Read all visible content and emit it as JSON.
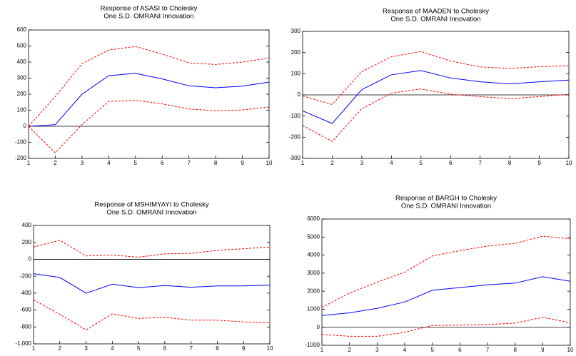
{
  "chart_data": [
    {
      "type": "line",
      "title": "Response of ASASI to Cholesky",
      "subtitle": "One S.D. OMRANI Innovation",
      "x": [
        1,
        2,
        3,
        4,
        5,
        6,
        7,
        8,
        9,
        10
      ],
      "xlim": [
        1,
        10
      ],
      "xticks": [
        1,
        2,
        3,
        4,
        5,
        6,
        7,
        8,
        9,
        10
      ],
      "ylim": [
        -200,
        600
      ],
      "yticks": [
        -200,
        -100,
        0,
        100,
        200,
        300,
        400,
        500,
        600
      ],
      "zero_line": true,
      "series": [
        {
          "color": "#0000ff",
          "dash": false,
          "values": [
            0,
            10,
            200,
            315,
            330,
            295,
            252,
            240,
            250,
            275
          ]
        },
        {
          "color": "#ff0000",
          "dash": true,
          "values": [
            0,
            185,
            390,
            475,
            497,
            450,
            395,
            385,
            400,
            425
          ]
        },
        {
          "color": "#ff0000",
          "dash": true,
          "values": [
            0,
            -165,
            10,
            155,
            162,
            140,
            108,
            97,
            102,
            120
          ]
        }
      ]
    },
    {
      "type": "line",
      "title": "Response of MAADEN to Cholesky",
      "subtitle": "One S.D. OMRANI Innovation",
      "x": [
        1,
        2,
        3,
        4,
        5,
        6,
        7,
        8,
        9,
        10
      ],
      "xlim": [
        1,
        10
      ],
      "xticks": [
        1,
        2,
        3,
        4,
        5,
        6,
        7,
        8,
        9,
        10
      ],
      "ylim": [
        -300,
        300
      ],
      "yticks": [
        -300,
        -200,
        -100,
        0,
        100,
        200,
        300
      ],
      "zero_line": true,
      "series": [
        {
          "color": "#0000ff",
          "dash": false,
          "values": [
            -75,
            -135,
            25,
            95,
            115,
            80,
            62,
            52,
            62,
            70
          ]
        },
        {
          "color": "#ff0000",
          "dash": true,
          "values": [
            -5,
            -45,
            110,
            180,
            205,
            160,
            132,
            125,
            133,
            138
          ]
        },
        {
          "color": "#ff0000",
          "dash": true,
          "values": [
            -145,
            -220,
            -65,
            8,
            28,
            3,
            -8,
            -18,
            -8,
            3
          ]
        }
      ]
    },
    {
      "type": "line",
      "title": "Response of MSHIMYAYI to Cholesky",
      "subtitle": "One S.D. OMRANI Innovation",
      "x": [
        1,
        2,
        3,
        4,
        5,
        6,
        7,
        8,
        9,
        10
      ],
      "xlim": [
        1,
        10
      ],
      "xticks": [
        1,
        2,
        3,
        4,
        5,
        6,
        7,
        8,
        9,
        10
      ],
      "ylim": [
        -1000,
        400
      ],
      "yticks": [
        {
          "value": -1000,
          "label": "-1,000"
        },
        -800,
        -600,
        -400,
        -200,
        0,
        200,
        400
      ],
      "zero_line": true,
      "series": [
        {
          "color": "#0000ff",
          "dash": false,
          "values": [
            -170,
            -215,
            -400,
            -295,
            -335,
            -310,
            -330,
            -315,
            -315,
            -305
          ]
        },
        {
          "color": "#ff0000",
          "dash": true,
          "values": [
            145,
            225,
            40,
            50,
            25,
            65,
            70,
            105,
            125,
            145
          ]
        },
        {
          "color": "#ff0000",
          "dash": true,
          "values": [
            -480,
            -650,
            -835,
            -645,
            -700,
            -685,
            -720,
            -720,
            -740,
            -750
          ]
        }
      ]
    },
    {
      "type": "line",
      "title": "Response of BARGH to Cholesky",
      "subtitle": "One S.D. OMRANI Innovation",
      "x": [
        1,
        2,
        3,
        4,
        5,
        6,
        7,
        8,
        9,
        10
      ],
      "xlim": [
        1,
        10
      ],
      "xticks": [
        1,
        2,
        3,
        4,
        5,
        6,
        7,
        8,
        9,
        10
      ],
      "ylim": [
        -1000,
        6000
      ],
      "yticks": [
        -1000,
        0,
        1000,
        2000,
        3000,
        4000,
        5000,
        6000
      ],
      "zero_line": true,
      "series": [
        {
          "color": "#0000ff",
          "dash": false,
          "values": [
            650,
            800,
            1050,
            1400,
            2050,
            2200,
            2350,
            2450,
            2800,
            2550
          ]
        },
        {
          "color": "#ff0000",
          "dash": true,
          "values": [
            1100,
            1900,
            2500,
            3050,
            3950,
            4250,
            4500,
            4650,
            5050,
            4900
          ]
        },
        {
          "color": "#ff0000",
          "dash": true,
          "values": [
            -400,
            -500,
            -500,
            -280,
            100,
            120,
            150,
            230,
            550,
            250
          ]
        }
      ]
    }
  ]
}
